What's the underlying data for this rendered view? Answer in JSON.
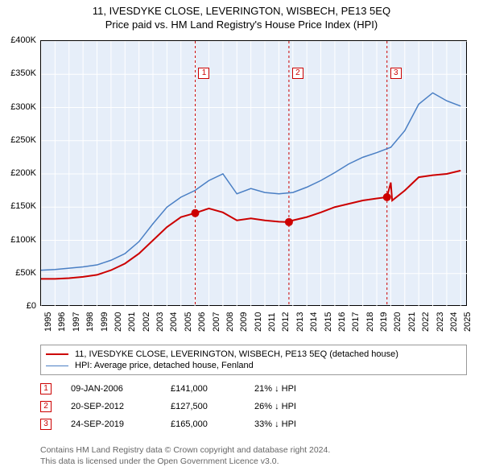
{
  "title": "11, IVESDYKE CLOSE, LEVERINGTON, WISBECH, PE13 5EQ",
  "subtitle": "Price paid vs. HM Land Registry's House Price Index (HPI)",
  "chart": {
    "type": "line",
    "background_color": "#e6eef9",
    "grid_color": "#ffffff",
    "plot_border_color": "#000000",
    "ylim": [
      0,
      400000
    ],
    "ytick_step": 50000,
    "ytick_labels": [
      "£0",
      "£50K",
      "£100K",
      "£150K",
      "£200K",
      "£250K",
      "£300K",
      "£350K",
      "£400K"
    ],
    "xlim": [
      1995,
      2025.5
    ],
    "xticks": [
      1995,
      1996,
      1997,
      1998,
      1999,
      2000,
      2001,
      2002,
      2003,
      2004,
      2005,
      2006,
      2007,
      2008,
      2009,
      2010,
      2011,
      2012,
      2013,
      2014,
      2015,
      2016,
      2017,
      2018,
      2019,
      2020,
      2021,
      2022,
      2023,
      2024,
      2025
    ],
    "title_fontsize": 13,
    "label_fontsize": 11,
    "series": [
      {
        "name": "property",
        "label": "11, IVESDYKE CLOSE, LEVERINGTON, WISBECH, PE13 5EQ (detached house)",
        "color": "#cc0000",
        "line_width": 2,
        "data": [
          [
            1995,
            42000
          ],
          [
            1996,
            42000
          ],
          [
            1997,
            43000
          ],
          [
            1998,
            45000
          ],
          [
            1999,
            48000
          ],
          [
            2000,
            55000
          ],
          [
            2001,
            65000
          ],
          [
            2002,
            80000
          ],
          [
            2003,
            100000
          ],
          [
            2004,
            120000
          ],
          [
            2005,
            135000
          ],
          [
            2006,
            141000
          ],
          [
            2007,
            148000
          ],
          [
            2008,
            142000
          ],
          [
            2009,
            130000
          ],
          [
            2010,
            133000
          ],
          [
            2011,
            130000
          ],
          [
            2012,
            128000
          ],
          [
            2012.72,
            127500
          ],
          [
            2013,
            130000
          ],
          [
            2014,
            135000
          ],
          [
            2015,
            142000
          ],
          [
            2016,
            150000
          ],
          [
            2017,
            155000
          ],
          [
            2018,
            160000
          ],
          [
            2019,
            163000
          ],
          [
            2019.73,
            165000
          ],
          [
            2020,
            187000
          ],
          [
            2020.1,
            160000
          ],
          [
            2021,
            175000
          ],
          [
            2022,
            195000
          ],
          [
            2023,
            198000
          ],
          [
            2024,
            200000
          ],
          [
            2025,
            205000
          ]
        ],
        "sale_points": [
          {
            "x": 2006.02,
            "y": 141000
          },
          {
            "x": 2012.72,
            "y": 127500
          },
          {
            "x": 2019.73,
            "y": 165000
          }
        ],
        "marker_color": "#cc0000",
        "marker_size": 5
      },
      {
        "name": "hpi",
        "label": "HPI: Average price, detached house, Fenland",
        "color": "#4a7fc4",
        "line_width": 1.5,
        "data": [
          [
            1995,
            55000
          ],
          [
            1996,
            56000
          ],
          [
            1997,
            58000
          ],
          [
            1998,
            60000
          ],
          [
            1999,
            63000
          ],
          [
            2000,
            70000
          ],
          [
            2001,
            80000
          ],
          [
            2002,
            98000
          ],
          [
            2003,
            125000
          ],
          [
            2004,
            150000
          ],
          [
            2005,
            165000
          ],
          [
            2006,
            175000
          ],
          [
            2007,
            190000
          ],
          [
            2008,
            200000
          ],
          [
            2009,
            170000
          ],
          [
            2010,
            178000
          ],
          [
            2011,
            172000
          ],
          [
            2012,
            170000
          ],
          [
            2013,
            172000
          ],
          [
            2014,
            180000
          ],
          [
            2015,
            190000
          ],
          [
            2016,
            202000
          ],
          [
            2017,
            215000
          ],
          [
            2018,
            225000
          ],
          [
            2019,
            232000
          ],
          [
            2020,
            240000
          ],
          [
            2021,
            265000
          ],
          [
            2022,
            305000
          ],
          [
            2023,
            322000
          ],
          [
            2024,
            310000
          ],
          [
            2025,
            302000
          ]
        ]
      }
    ],
    "markers": [
      {
        "n": "1",
        "x": 2006.02,
        "box_y": 360000,
        "color": "#cc0000"
      },
      {
        "n": "2",
        "x": 2012.72,
        "box_y": 360000,
        "color": "#cc0000"
      },
      {
        "n": "3",
        "x": 2019.73,
        "box_y": 360000,
        "color": "#cc0000"
      }
    ]
  },
  "legend": {
    "items": [
      {
        "color": "#cc0000",
        "label_path": "chart.series.0.label"
      },
      {
        "color": "#4a7fc4",
        "label_path": "chart.series.1.label"
      }
    ]
  },
  "sales": [
    {
      "n": "1",
      "date": "09-JAN-2006",
      "price": "£141,000",
      "delta": "21% ↓ HPI",
      "color": "#cc0000"
    },
    {
      "n": "2",
      "date": "20-SEP-2012",
      "price": "£127,500",
      "delta": "26% ↓ HPI",
      "color": "#cc0000"
    },
    {
      "n": "3",
      "date": "24-SEP-2019",
      "price": "£165,000",
      "delta": "33% ↓ HPI",
      "color": "#cc0000"
    }
  ],
  "footer": {
    "line1": "Contains HM Land Registry data © Crown copyright and database right 2024.",
    "line2": "This data is licensed under the Open Government Licence v3.0."
  }
}
